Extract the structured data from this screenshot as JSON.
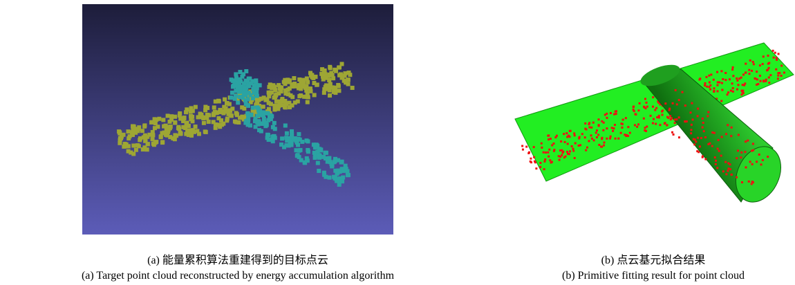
{
  "figures": [
    {
      "caption_zh": "(a) 能量累积算法重建得到的目标点云",
      "caption_en": "(a) Target point cloud reconstructed by energy accumulation algorithm"
    },
    {
      "caption_zh": "(b) 点云基元拟合结果",
      "caption_en": "(b) Primitive fitting result for point cloud"
    }
  ]
}
